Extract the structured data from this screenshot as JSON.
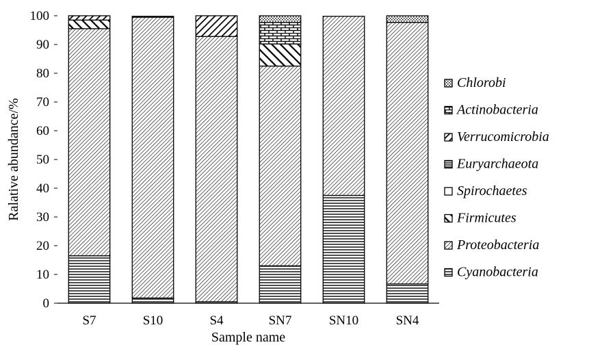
{
  "chart_data": {
    "type": "bar",
    "stacked": true,
    "xlabel": "Sample name",
    "ylabel": "Ralative abundance/%",
    "ylim": [
      0,
      100
    ],
    "yticks": [
      0,
      10,
      20,
      30,
      40,
      50,
      60,
      70,
      80,
      90,
      100
    ],
    "grid": false,
    "legend_position": "right",
    "categories": [
      "S7",
      "S10",
      "S4",
      "SN7",
      "SN10",
      "SN4"
    ],
    "series": [
      {
        "name": "Cyanobacteria",
        "pattern": "horizontal-lines",
        "values": [
          16.5,
          1.8,
          0.5,
          13.0,
          37.5,
          6.7
        ]
      },
      {
        "name": "Proteobacteria",
        "pattern": "fine-diagonal",
        "values": [
          79.0,
          97.7,
          92.3,
          69.5,
          62.3,
          91.0
        ]
      },
      {
        "name": "Firmicutes",
        "pattern": "wide-diagonal-back",
        "values": [
          3.0,
          0,
          0,
          7.7,
          0,
          0
        ]
      },
      {
        "name": "Spirochaetes",
        "pattern": "blank",
        "values": [
          0,
          0,
          0,
          0,
          0,
          0
        ]
      },
      {
        "name": "Euryarchaeota",
        "pattern": "horizontal-dense",
        "values": [
          0,
          0,
          0,
          0,
          0,
          0
        ]
      },
      {
        "name": "Verrucomicrobia",
        "pattern": "wide-diagonal",
        "values": [
          1.5,
          0.3,
          7.2,
          0,
          0,
          0
        ]
      },
      {
        "name": "Actinobacteria",
        "pattern": "brick",
        "values": [
          0,
          0,
          0,
          7.5,
          0,
          0
        ]
      },
      {
        "name": "Chlorobi",
        "pattern": "dotted-diagonal",
        "values": [
          0,
          0,
          0,
          2.3,
          0,
          2.3
        ]
      }
    ]
  },
  "colors": {
    "ink": "#000000",
    "background": "#ffffff"
  }
}
